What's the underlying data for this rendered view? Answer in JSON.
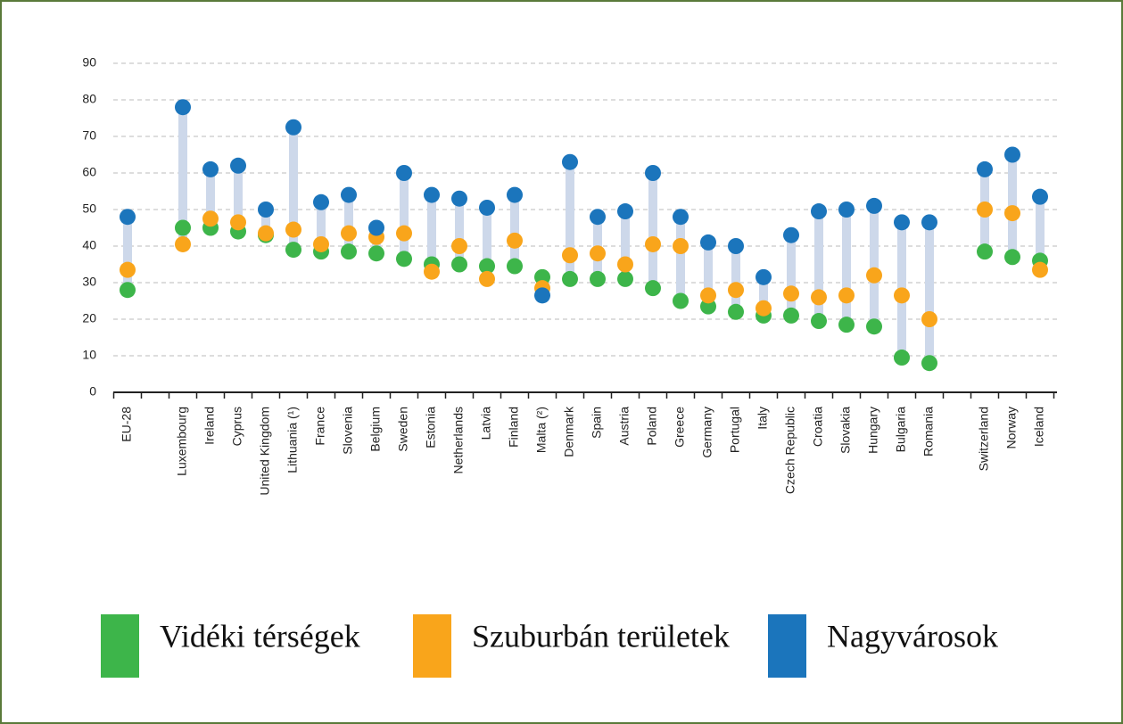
{
  "chart_data": {
    "type": "dot-range",
    "categories": [
      "EU-28",
      null,
      "Luxembourg",
      "Ireland",
      "Cyprus",
      "United Kingdom",
      "Lithuania (¹)",
      "France",
      "Slovenia",
      "Belgium",
      "Sweden",
      "Estonia",
      "Netherlands",
      "Latvia",
      "Finland",
      "Malta (²)",
      "Denmark",
      "Spain",
      "Austria",
      "Poland",
      "Greece",
      "Germany",
      "Portugal",
      "Italy",
      "Czech Republic",
      "Croatia",
      "Slovakia",
      "Hungary",
      "Bulgaria",
      "Romania",
      null,
      "Switzerland",
      "Norway",
      "Iceland"
    ],
    "series": [
      {
        "name": "Vidéki térségek",
        "color": "#3db54a",
        "values": [
          28,
          null,
          45,
          45,
          44,
          43,
          39,
          38.5,
          38.5,
          38,
          36.5,
          35,
          35,
          34.5,
          34.5,
          31.5,
          31,
          31,
          31,
          28.5,
          25,
          23.5,
          22,
          21,
          21,
          19.5,
          18.5,
          18,
          9.5,
          8,
          null,
          38.5,
          37,
          36
        ]
      },
      {
        "name": "Szuburbán területek",
        "color": "#f9a51b",
        "values": [
          33.5,
          null,
          40.5,
          47.5,
          46.5,
          43.5,
          44.5,
          40.5,
          43.5,
          42.5,
          43.5,
          33,
          40,
          31,
          41.5,
          28.5,
          37.5,
          38,
          35,
          40.5,
          40,
          26.5,
          28,
          23,
          27,
          26,
          26.5,
          32,
          26.5,
          20,
          null,
          50,
          49,
          33.5
        ]
      },
      {
        "name": "Nagyvárosok",
        "color": "#1b75bc",
        "values": [
          48,
          null,
          78,
          61,
          62,
          50,
          72.5,
          52,
          54,
          45,
          60,
          54,
          53,
          50.5,
          54,
          26.5,
          63,
          48,
          49.5,
          60,
          48,
          41,
          40,
          31.5,
          43,
          49.5,
          50,
          51,
          46.5,
          46.5,
          null,
          61,
          65,
          53.5
        ]
      }
    ],
    "range_color": "#cdd8ea",
    "ylim": [
      0,
      90
    ],
    "yticks": [
      0,
      10,
      20,
      30,
      40,
      50,
      60,
      70,
      80,
      90
    ],
    "grid": true
  }
}
